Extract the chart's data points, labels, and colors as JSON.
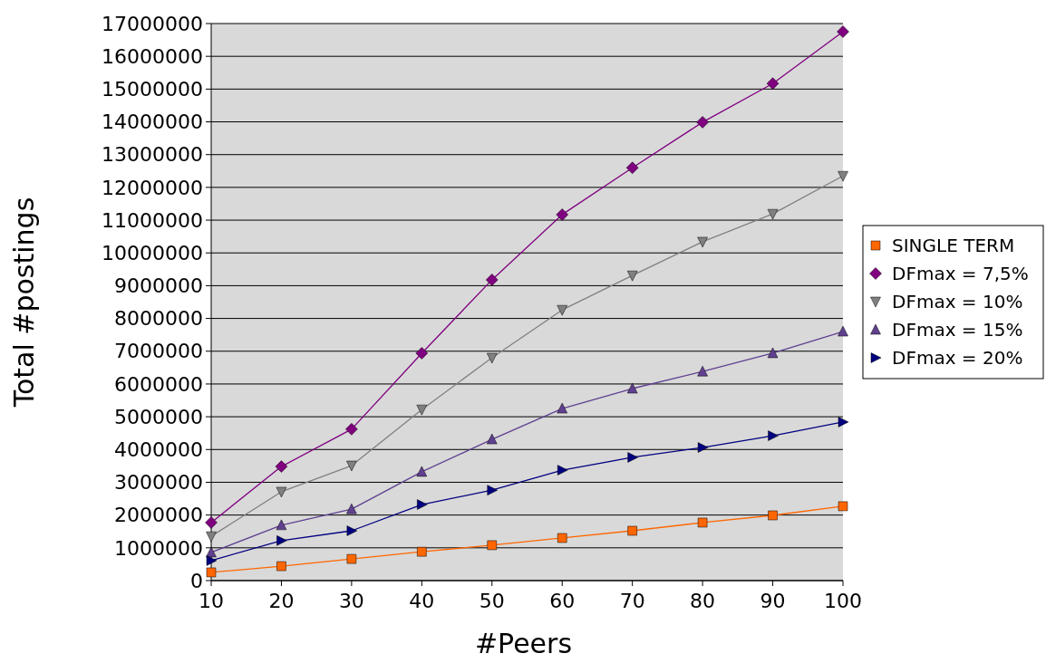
{
  "chart_data": {
    "type": "line",
    "xlabel": "#Peers",
    "ylabel": "Total #postings",
    "x": [
      10,
      20,
      30,
      40,
      50,
      60,
      70,
      80,
      90,
      100
    ],
    "xlim": [
      10,
      100
    ],
    "xticks": [
      10,
      20,
      30,
      40,
      50,
      60,
      70,
      80,
      90,
      100
    ],
    "ylim": [
      0,
      17000000
    ],
    "yticks": [
      0,
      1000000,
      2000000,
      3000000,
      4000000,
      5000000,
      6000000,
      7000000,
      8000000,
      9000000,
      10000000,
      11000000,
      12000000,
      13000000,
      14000000,
      15000000,
      16000000,
      17000000
    ],
    "grid": "y",
    "legend": "right",
    "line_style": "solid",
    "series": [
      {
        "name": "SINGLE TERM",
        "color": "#ff6600",
        "marker": "square",
        "values": [
          250000,
          440000,
          660000,
          880000,
          1080000,
          1300000,
          1520000,
          1770000,
          1990000,
          2270000
        ]
      },
      {
        "name": "DFmax = 7,5%",
        "color": "#800080",
        "marker": "diamond",
        "values": [
          1770000,
          3480000,
          4620000,
          6940000,
          9180000,
          11170000,
          12600000,
          13990000,
          15170000,
          16750000
        ]
      },
      {
        "name": "DFmax = 10%",
        "color": "#808080",
        "marker": "triangle-down",
        "values": [
          1350000,
          2710000,
          3510000,
          5220000,
          6800000,
          8260000,
          9310000,
          10340000,
          11190000,
          12350000
        ]
      },
      {
        "name": "DFmax = 15%",
        "color": "#604090",
        "marker": "triangle",
        "values": [
          860000,
          1690000,
          2180000,
          3320000,
          4310000,
          5250000,
          5860000,
          6380000,
          6940000,
          7600000
        ]
      },
      {
        "name": "DFmax = 20%",
        "color": "#000080",
        "marker": "triangle-right",
        "values": [
          610000,
          1220000,
          1520000,
          2320000,
          2760000,
          3370000,
          3760000,
          4060000,
          4420000,
          4840000
        ]
      }
    ]
  }
}
